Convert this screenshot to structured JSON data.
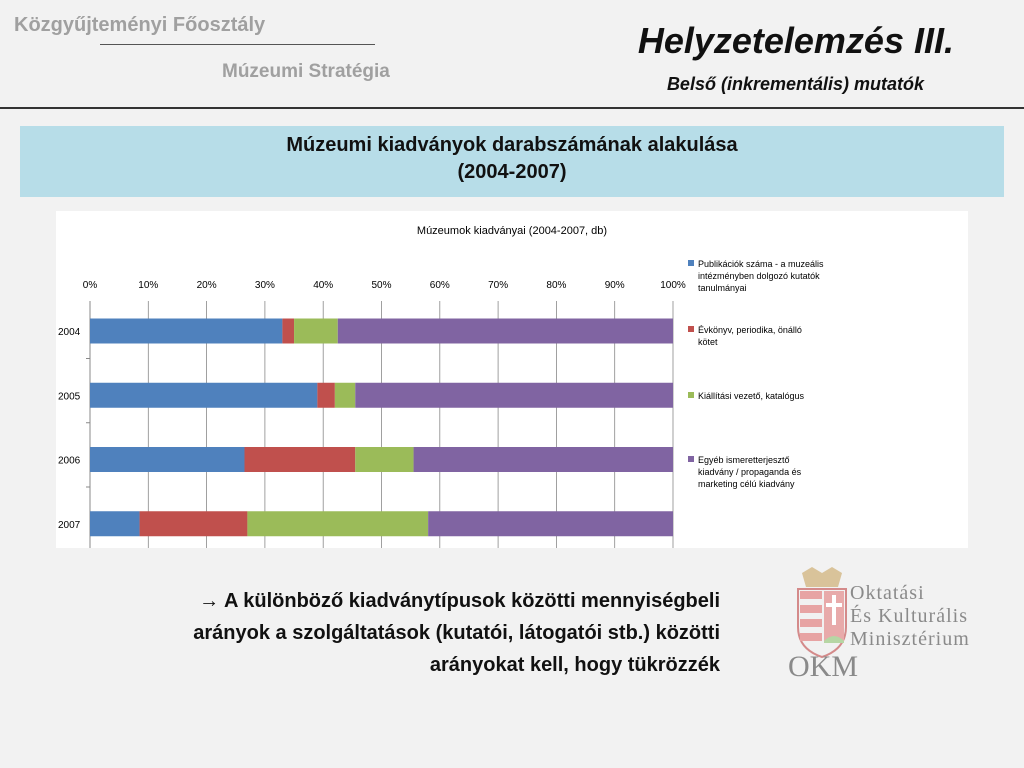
{
  "header": {
    "department": "Közgyűjteményi Főosztály",
    "subtitle": "Múzeumi Stratégia",
    "title": "Helyzetelemzés III.",
    "title_sub": "Belső (inkrementális) mutatók"
  },
  "section": {
    "line1": "Múzeumi kiadványok darabszámának alakulása",
    "line2": "(2004-2007)"
  },
  "chart_data": {
    "type": "bar",
    "orientation": "horizontal",
    "stacked": "percent",
    "title": "Múzeumok kiadványai (2004-2007, db)",
    "categories": [
      "2004",
      "2005",
      "2006",
      "2007"
    ],
    "x_ticks": [
      "0%",
      "10%",
      "20%",
      "30%",
      "40%",
      "50%",
      "60%",
      "70%",
      "80%",
      "90%",
      "100%"
    ],
    "xlim": [
      0,
      100
    ],
    "grid": true,
    "legend_position": "right",
    "series": [
      {
        "name": "Publikációk száma - a muzeális intézményben dolgozó kutatók tanulmányai",
        "color": "#4f81bd",
        "values": [
          33,
          39,
          26.5,
          8.5
        ]
      },
      {
        "name": "Évkönyv, periodika, önálló kötet",
        "color": "#c0504d",
        "values": [
          2,
          3,
          19,
          18.5
        ]
      },
      {
        "name": "Kiállítási vezető, katalógus",
        "color": "#9bbb59",
        "values": [
          7.5,
          3.5,
          10,
          31
        ]
      },
      {
        "name": "Egyéb ismeretterjesztő kiadvány / propaganda és marketing célú kiadvány",
        "color": "#8064a2",
        "values": [
          57.5,
          54.5,
          44.5,
          42
        ]
      }
    ]
  },
  "note": {
    "arrow": "→",
    "text_line1": "A különböző kiadványtípusok közötti mennyiségbeli",
    "text_line2": "arányok a szolgáltatások (kutatói, látogatói stb.) közötti",
    "text_line3": "arányokat kell, hogy tükrözzék"
  },
  "logo": {
    "line1": "Oktatási",
    "line2": "És Kulturális",
    "line3": "Minisztérium",
    "abbr": "OKM"
  }
}
